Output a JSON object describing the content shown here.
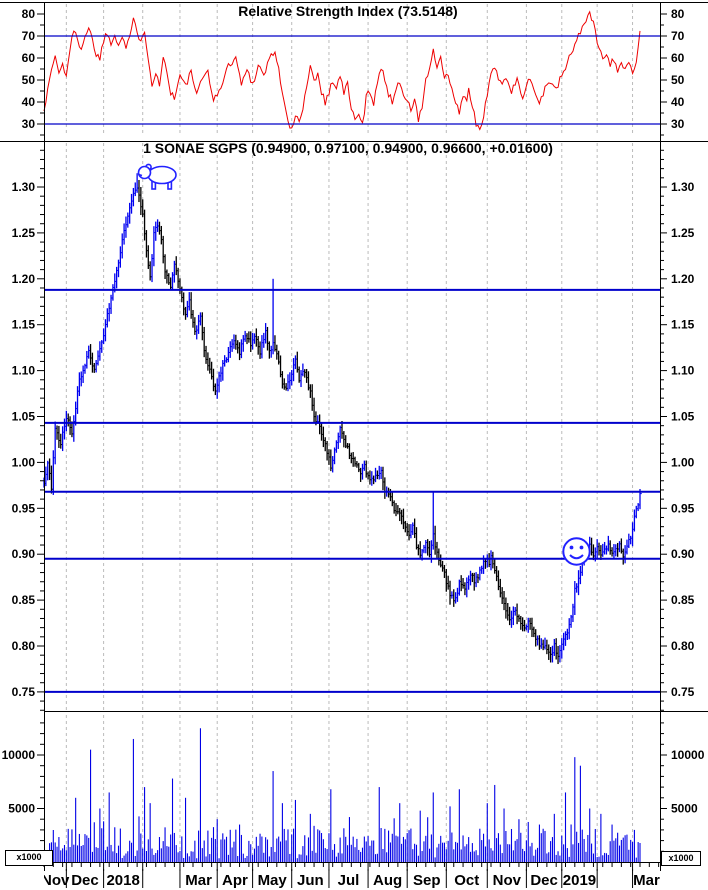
{
  "colors": {
    "background": "#ffffff",
    "rsi_line": "#ee0000",
    "threshold_line": "#0000c8",
    "level_line": "#0000cc",
    "up_bar": "#0000f0",
    "down_bar": "#000000",
    "volume_bar": "#0000e6",
    "grid_dash": "#bbbbbb",
    "axis": "#000000",
    "text": "#000000",
    "annotation_blue": "#2222ff"
  },
  "rsi_panel": {
    "title": "Relative Strength Index (73.5148)",
    "axis_ticks": [
      30,
      40,
      50,
      60,
      70,
      80
    ],
    "threshold_lines": [
      30,
      70
    ]
  },
  "price_panel": {
    "title": "1 SONAE SGPS (0.94900, 0.97100, 0.94900, 0.96600, +0.01600)",
    "axis_ticks": [
      "0.75",
      "0.80",
      "0.85",
      "0.90",
      "0.95",
      "1.00",
      "1.05",
      "1.10",
      "1.15",
      "1.20",
      "1.25",
      "1.30"
    ],
    "level_lines": [
      1.188,
      1.043,
      0.968,
      0.895,
      0.75
    ]
  },
  "volume_panel": {
    "axis_ticks": [
      5000,
      10000
    ],
    "scale_label": "x1000"
  },
  "x_axis": {
    "months": [
      {
        "label": "Nov",
        "start": 0
      },
      {
        "label": "Dec",
        "start": 12
      },
      {
        "label": "2018",
        "start": 32
      },
      {
        "label": "",
        "start": 53
      },
      {
        "label": "Mar",
        "start": 73
      },
      {
        "label": "Apr",
        "start": 93
      },
      {
        "label": "May",
        "start": 112
      },
      {
        "label": "Jun",
        "start": 133
      },
      {
        "label": "Jul",
        "start": 153
      },
      {
        "label": "Aug",
        "start": 174
      },
      {
        "label": "Sep",
        "start": 195
      },
      {
        "label": "Oct",
        "start": 216
      },
      {
        "label": "Nov",
        "start": 238
      },
      {
        "label": "Dec",
        "start": 259
      },
      {
        "label": "2019",
        "start": 278
      },
      {
        "label": "",
        "start": 297
      },
      {
        "label": "Mar",
        "start": 316
      }
    ],
    "total_days": 331,
    "data_days": 321,
    "weekly_tick_step": 5
  },
  "chart_data": [
    {
      "type": "line",
      "name": "rsi",
      "title": "Relative Strength Index",
      "last_value": 73.5148,
      "ylim": [
        25,
        85
      ],
      "anchors": [
        [
          0,
          37
        ],
        [
          2,
          45
        ],
        [
          4,
          55
        ],
        [
          6,
          61
        ],
        [
          8,
          53
        ],
        [
          10,
          57
        ],
        [
          12,
          52
        ],
        [
          14,
          65
        ],
        [
          16,
          72
        ],
        [
          18,
          68
        ],
        [
          20,
          65
        ],
        [
          22,
          70
        ],
        [
          24,
          74
        ],
        [
          26,
          68
        ],
        [
          28,
          62
        ],
        [
          30,
          60
        ],
        [
          32,
          68
        ],
        [
          34,
          72
        ],
        [
          36,
          66
        ],
        [
          38,
          71
        ],
        [
          40,
          67
        ],
        [
          42,
          70
        ],
        [
          44,
          65
        ],
        [
          46,
          70
        ],
        [
          48,
          77
        ],
        [
          50,
          71
        ],
        [
          52,
          69
        ],
        [
          54,
          73
        ],
        [
          56,
          60
        ],
        [
          58,
          48
        ],
        [
          60,
          54
        ],
        [
          62,
          47
        ],
        [
          64,
          60
        ],
        [
          66,
          55
        ],
        [
          68,
          44
        ],
        [
          70,
          42
        ],
        [
          73,
          52
        ],
        [
          76,
          47
        ],
        [
          79,
          54
        ],
        [
          82,
          43
        ],
        [
          85,
          50
        ],
        [
          88,
          55
        ],
        [
          91,
          40
        ],
        [
          94,
          45
        ],
        [
          97,
          52
        ],
        [
          100,
          58
        ],
        [
          103,
          60
        ],
        [
          106,
          48
        ],
        [
          109,
          55
        ],
        [
          112,
          48
        ],
        [
          115,
          57
        ],
        [
          118,
          52
        ],
        [
          121,
          60
        ],
        [
          124,
          63
        ],
        [
          127,
          50
        ],
        [
          129,
          40
        ],
        [
          131,
          30
        ],
        [
          133,
          27
        ],
        [
          135,
          34
        ],
        [
          137,
          30
        ],
        [
          139,
          38
        ],
        [
          141,
          48
        ],
        [
          143,
          56
        ],
        [
          145,
          50
        ],
        [
          147,
          53
        ],
        [
          149,
          45
        ],
        [
          151,
          40
        ],
        [
          153,
          44
        ],
        [
          155,
          50
        ],
        [
          157,
          47
        ],
        [
          159,
          52
        ],
        [
          161,
          44
        ],
        [
          163,
          48
        ],
        [
          165,
          38
        ],
        [
          167,
          31
        ],
        [
          169,
          34
        ],
        [
          171,
          30
        ],
        [
          173,
          42
        ],
        [
          175,
          45
        ],
        [
          177,
          40
        ],
        [
          179,
          50
        ],
        [
          181,
          55
        ],
        [
          183,
          50
        ],
        [
          185,
          44
        ],
        [
          187,
          40
        ],
        [
          189,
          46
        ],
        [
          191,
          50
        ],
        [
          193,
          44
        ],
        [
          195,
          40
        ],
        [
          197,
          36
        ],
        [
          199,
          42
        ],
        [
          201,
          31
        ],
        [
          203,
          38
        ],
        [
          205,
          50
        ],
        [
          207,
          55
        ],
        [
          209,
          63
        ],
        [
          211,
          56
        ],
        [
          213,
          59
        ],
        [
          215,
          50
        ],
        [
          217,
          53
        ],
        [
          219,
          45
        ],
        [
          221,
          40
        ],
        [
          223,
          34
        ],
        [
          225,
          44
        ],
        [
          227,
          40
        ],
        [
          228,
          45
        ],
        [
          230,
          38
        ],
        [
          232,
          30
        ],
        [
          234,
          27
        ],
        [
          236,
          33
        ],
        [
          239,
          50
        ],
        [
          242,
          55
        ],
        [
          245,
          48
        ],
        [
          248,
          52
        ],
        [
          251,
          44
        ],
        [
          254,
          50
        ],
        [
          257,
          42
        ],
        [
          260,
          52
        ],
        [
          263,
          46
        ],
        [
          266,
          40
        ],
        [
          269,
          46
        ],
        [
          272,
          50
        ],
        [
          275,
          45
        ],
        [
          278,
          52
        ],
        [
          281,
          58
        ],
        [
          284,
          64
        ],
        [
          287,
          70
        ],
        [
          290,
          76
        ],
        [
          293,
          81
        ],
        [
          296,
          72
        ],
        [
          298,
          64
        ],
        [
          300,
          60
        ],
        [
          302,
          63
        ],
        [
          304,
          57
        ],
        [
          306,
          60
        ],
        [
          308,
          55
        ],
        [
          310,
          58
        ],
        [
          312,
          54
        ],
        [
          314,
          57
        ],
        [
          316,
          53
        ],
        [
          318,
          58
        ],
        [
          320,
          73.5
        ]
      ]
    },
    {
      "type": "ohlc",
      "name": "price",
      "symbol": "SONAE SGPS",
      "last": {
        "open": 0.949,
        "high": 0.971,
        "low": 0.949,
        "close": 0.966,
        "change": 0.016
      },
      "ylim": [
        0.73,
        1.35
      ],
      "close_anchors": [
        [
          0,
          0.975
        ],
        [
          2,
          1.0
        ],
        [
          4,
          0.972
        ],
        [
          6,
          1.04
        ],
        [
          9,
          1.02
        ],
        [
          12,
          1.05
        ],
        [
          15,
          1.03
        ],
        [
          19,
          1.09
        ],
        [
          24,
          1.12
        ],
        [
          27,
          1.1
        ],
        [
          32,
          1.14
        ],
        [
          36,
          1.18
        ],
        [
          40,
          1.22
        ],
        [
          44,
          1.26
        ],
        [
          48,
          1.295
        ],
        [
          50,
          1.3
        ],
        [
          53,
          1.27
        ],
        [
          55,
          1.23
        ],
        [
          57,
          1.2
        ],
        [
          59,
          1.25
        ],
        [
          61,
          1.26
        ],
        [
          63,
          1.24
        ],
        [
          65,
          1.21
        ],
        [
          68,
          1.19
        ],
        [
          70,
          1.215
        ],
        [
          73,
          1.19
        ],
        [
          76,
          1.16
        ],
        [
          78,
          1.175
        ],
        [
          81,
          1.14
        ],
        [
          84,
          1.16
        ],
        [
          86,
          1.12
        ],
        [
          89,
          1.1
        ],
        [
          92,
          1.075
        ],
        [
          95,
          1.1
        ],
        [
          99,
          1.12
        ],
        [
          102,
          1.13
        ],
        [
          105,
          1.12
        ],
        [
          108,
          1.14
        ],
        [
          111,
          1.13
        ],
        [
          113,
          1.14
        ],
        [
          116,
          1.12
        ],
        [
          119,
          1.145
        ],
        [
          121,
          1.12
        ],
        [
          123,
          1.13
        ],
        [
          125,
          1.12
        ],
        [
          127,
          1.095
        ],
        [
          129,
          1.08
        ],
        [
          132,
          1.09
        ],
        [
          135,
          1.11
        ],
        [
          137,
          1.09
        ],
        [
          140,
          1.1
        ],
        [
          143,
          1.075
        ],
        [
          145,
          1.05
        ],
        [
          148,
          1.04
        ],
        [
          151,
          1.02
        ],
        [
          154,
          0.995
        ],
        [
          157,
          1.02
        ],
        [
          159,
          1.035
        ],
        [
          162,
          1.02
        ],
        [
          164,
          1.01
        ],
        [
          167,
          1.0
        ],
        [
          170,
          0.99
        ],
        [
          172,
          0.995
        ],
        [
          175,
          0.98
        ],
        [
          178,
          0.985
        ],
        [
          181,
          0.99
        ],
        [
          183,
          0.97
        ],
        [
          186,
          0.96
        ],
        [
          188,
          0.95
        ],
        [
          191,
          0.945
        ],
        [
          194,
          0.93
        ],
        [
          196,
          0.92
        ],
        [
          198,
          0.93
        ],
        [
          200,
          0.91
        ],
        [
          202,
          0.9
        ],
        [
          205,
          0.91
        ],
        [
          207,
          0.9
        ],
        [
          209,
          0.92
        ],
        [
          211,
          0.9
        ],
        [
          213,
          0.89
        ],
        [
          215,
          0.88
        ],
        [
          216,
          0.87
        ],
        [
          218,
          0.855
        ],
        [
          221,
          0.85
        ],
        [
          223,
          0.87
        ],
        [
          226,
          0.86
        ],
        [
          229,
          0.88
        ],
        [
          231,
          0.87
        ],
        [
          234,
          0.88
        ],
        [
          237,
          0.895
        ],
        [
          239,
          0.89
        ],
        [
          240,
          0.9
        ],
        [
          242,
          0.88
        ],
        [
          245,
          0.86
        ],
        [
          247,
          0.845
        ],
        [
          250,
          0.83
        ],
        [
          253,
          0.84
        ],
        [
          255,
          0.83
        ],
        [
          258,
          0.82
        ],
        [
          260,
          0.825
        ],
        [
          262,
          0.82
        ],
        [
          264,
          0.81
        ],
        [
          266,
          0.8
        ],
        [
          269,
          0.8
        ],
        [
          272,
          0.79
        ],
        [
          274,
          0.8
        ],
        [
          276,
          0.79
        ],
        [
          278,
          0.8
        ],
        [
          280,
          0.81
        ],
        [
          283,
          0.83
        ],
        [
          285,
          0.86
        ],
        [
          288,
          0.88
        ],
        [
          290,
          0.9
        ],
        [
          293,
          0.91
        ],
        [
          295,
          0.9
        ],
        [
          297,
          0.91
        ],
        [
          299,
          0.9
        ],
        [
          301,
          0.905
        ],
        [
          303,
          0.91
        ],
        [
          305,
          0.9
        ],
        [
          307,
          0.905
        ],
        [
          309,
          0.91
        ],
        [
          311,
          0.9
        ],
        [
          313,
          0.91
        ],
        [
          315,
          0.92
        ],
        [
          317,
          0.94
        ],
        [
          319,
          0.955
        ],
        [
          320,
          0.966
        ]
      ],
      "wick_events": [
        {
          "day": 50,
          "high": 1.315
        },
        {
          "day": 123,
          "high": 1.2
        },
        {
          "day": 209,
          "high": 0.968
        },
        {
          "day": 218,
          "low": 0.845
        },
        {
          "day": 272,
          "low": 0.782
        },
        {
          "day": 290,
          "high": 0.915
        }
      ]
    },
    {
      "type": "bar",
      "name": "volume",
      "unit_scale": "x1000",
      "ylim": [
        0,
        13000
      ],
      "base_range": [
        350,
        3200
      ],
      "spikes": [
        [
          17,
          6000
        ],
        [
          25,
          10500
        ],
        [
          30,
          5000
        ],
        [
          35,
          6500
        ],
        [
          48,
          11500
        ],
        [
          54,
          7000
        ],
        [
          57,
          5500
        ],
        [
          69,
          7800
        ],
        [
          76,
          6000
        ],
        [
          84,
          12500
        ],
        [
          93,
          4000
        ],
        [
          105,
          3500
        ],
        [
          123,
          8500
        ],
        [
          128,
          5500
        ],
        [
          135,
          5800
        ],
        [
          143,
          4500
        ],
        [
          154,
          6800
        ],
        [
          164,
          4200
        ],
        [
          180,
          7000
        ],
        [
          191,
          5500
        ],
        [
          202,
          4800
        ],
        [
          209,
          6500
        ],
        [
          218,
          5200
        ],
        [
          223,
          6800
        ],
        [
          238,
          5500
        ],
        [
          242,
          7200
        ],
        [
          247,
          5000
        ],
        [
          255,
          4000
        ],
        [
          266,
          3500
        ],
        [
          274,
          4500
        ],
        [
          280,
          6500
        ],
        [
          285,
          9800
        ],
        [
          288,
          9000
        ],
        [
          293,
          5000
        ],
        [
          299,
          4500
        ],
        [
          305,
          3500
        ],
        [
          312,
          2500
        ],
        [
          317,
          3000
        ]
      ]
    }
  ],
  "annotations": {
    "bear": {
      "name": "bear-icon",
      "day": 52,
      "price": 1.32
    },
    "smiley": {
      "name": "smiley-icon",
      "day": 285,
      "price": 0.895
    }
  }
}
